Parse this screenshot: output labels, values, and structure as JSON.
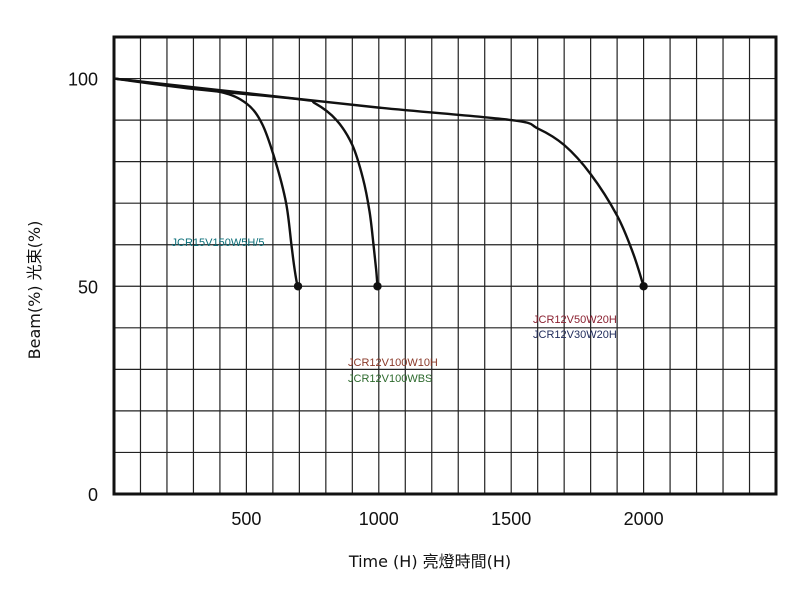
{
  "chart_data": {
    "type": "line",
    "title": "",
    "xlabel": "Time (H)  亮燈時間(H)",
    "ylabel": "Beam(%) 光束(%)",
    "xlim": [
      0,
      2500
    ],
    "ylim": [
      0,
      110
    ],
    "grid": true,
    "x_ticks": [
      500,
      1000,
      1500,
      2000
    ],
    "x_tick_labels": [
      "500",
      "1000",
      "1500",
      "2000"
    ],
    "y_ticks": [
      0,
      50,
      100
    ],
    "y_tick_labels": [
      "0",
      "50",
      "100"
    ],
    "x_grid_step": 100,
    "y_grid_step": 10,
    "series": [
      {
        "name": "JCR15V150W5H/5",
        "x": [
          0,
          200,
          400,
          500,
          560,
          610,
          650,
          670,
          680,
          690,
          695
        ],
        "y": [
          100,
          98.5,
          96.8,
          94,
          89,
          80,
          70,
          60,
          55,
          51,
          50
        ],
        "endpoint": [
          695,
          50
        ]
      },
      {
        "name": "JCR12V100W10H / JCR12V100WBS",
        "x": [
          0,
          300,
          700,
          760,
          840,
          900,
          940,
          965,
          980,
          990,
          995
        ],
        "y": [
          100,
          97.5,
          95,
          94,
          90,
          84,
          76,
          68,
          60,
          54,
          50
        ],
        "endpoint": [
          995,
          50
        ]
      },
      {
        "name": "JCR12V50W20H / JCR12V30W20H",
        "x": [
          0,
          500,
          1000,
          1500,
          1600,
          1700,
          1800,
          1900,
          1960,
          2000
        ],
        "y": [
          100,
          96.5,
          93,
          90,
          88,
          84,
          77,
          67,
          58,
          50
        ],
        "endpoint": [
          2000,
          50
        ]
      }
    ],
    "annotations": [
      {
        "text": "JCR15V150W5H/5",
        "color": "#0a6e78"
      },
      {
        "text": "JCR12V100W10H",
        "color": "#8a3a2a"
      },
      {
        "text": "JCR12V100WBS",
        "color": "#2d6a2d"
      },
      {
        "text": "JCR12V50W20H",
        "color": "#8a2030"
      },
      {
        "text": "JCR12V30W20H",
        "color": "#1e2a5a"
      }
    ]
  }
}
